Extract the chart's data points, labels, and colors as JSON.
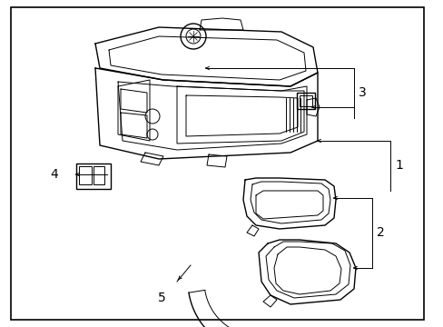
{
  "bg_color": "#ffffff",
  "line_color": "#000000",
  "border_color": "#000000",
  "label_fontsize": 10
}
